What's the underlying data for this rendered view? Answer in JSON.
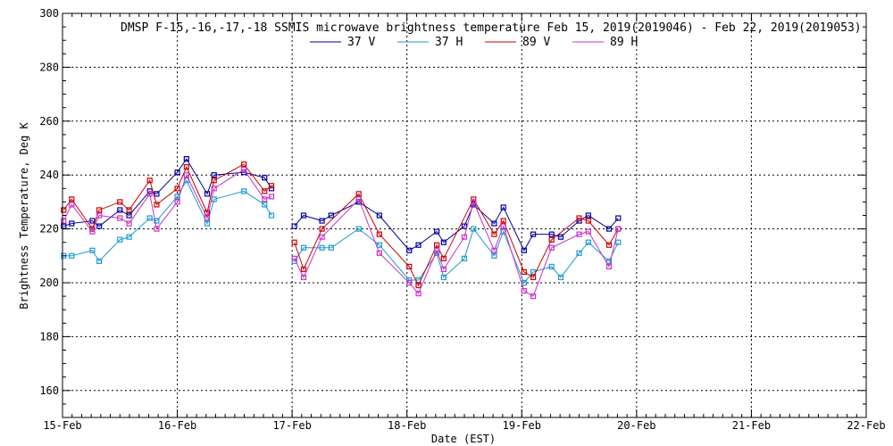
{
  "chart_data": {
    "type": "line",
    "title": "DMSP F-15,-16,-17,-18 SSMIS microwave brightness temperature Feb 15, 2019(2019046) - Feb 22, 2019(2019053)",
    "xlabel": "Date (EST)",
    "ylabel": "Brightness Temperature, Deg K",
    "xlim": [
      0,
      7
    ],
    "ylim": [
      150,
      300
    ],
    "x_ticks": [
      0,
      1,
      2,
      3,
      4,
      5,
      6,
      7
    ],
    "x_tick_labels": [
      "15-Feb",
      "16-Feb",
      "17-Feb",
      "18-Feb",
      "19-Feb",
      "20-Feb",
      "21-Feb",
      "22-Feb"
    ],
    "y_ticks": [
      160,
      180,
      200,
      220,
      240,
      260,
      280,
      300
    ],
    "grid": true,
    "legend_position": "top-center",
    "series": [
      {
        "name": "37 V",
        "color": "#00009c",
        "segments": [
          {
            "x": [
              0.01,
              0.08,
              0.26,
              0.32,
              0.5,
              0.58,
              0.76,
              0.82,
              1.0,
              1.08,
              1.26,
              1.32,
              1.58,
              1.76,
              1.82
            ],
            "y": [
              221,
              222,
              223,
              221,
              227,
              225,
              234,
              233,
              241,
              246,
              233,
              240,
              241,
              239,
              235
            ]
          },
          {
            "x": [
              2.02,
              2.1,
              2.26,
              2.34,
              2.58,
              2.76,
              3.02,
              3.1,
              3.26,
              3.32,
              3.5,
              3.58,
              3.76,
              3.84,
              4.02,
              4.1,
              4.26,
              4.34,
              4.5,
              4.58,
              4.76,
              4.84
            ],
            "y": [
              221,
              225,
              223,
              225,
              230,
              225,
              212,
              214,
              219,
              215,
              221,
              229,
              222,
              228,
              212,
              218,
              218,
              217,
              223,
              225,
              220,
              224
            ]
          }
        ]
      },
      {
        "name": "37 H",
        "color": "#1e9ad2",
        "segments": [
          {
            "x": [
              0.01,
              0.08,
              0.26,
              0.32,
              0.5,
              0.58,
              0.76,
              0.82,
              1.0,
              1.08,
              1.26,
              1.32,
              1.58,
              1.76,
              1.82
            ],
            "y": [
              210,
              210,
              212,
              208,
              216,
              217,
              224,
              223,
              232,
              238,
              222,
              231,
              234,
              229,
              225
            ]
          },
          {
            "x": [
              2.02,
              2.1,
              2.26,
              2.34,
              2.58,
              2.76,
              3.02,
              3.1,
              3.26,
              3.32,
              3.5,
              3.58,
              3.76,
              3.84,
              4.02,
              4.1,
              4.26,
              4.34,
              4.5,
              4.58,
              4.76,
              4.84
            ],
            "y": [
              208,
              213,
              213,
              213,
              220,
              214,
              201,
              201,
              211,
              202,
              209,
              220,
              210,
              219,
              200,
              204,
              206,
              202,
              211,
              215,
              208,
              215
            ]
          }
        ]
      },
      {
        "name": "89 V",
        "color": "#c80000",
        "segments": [
          {
            "x": [
              0.01,
              0.08,
              0.26,
              0.32,
              0.5,
              0.58,
              0.76,
              0.82,
              1.0,
              1.08,
              1.26,
              1.32,
              1.58,
              1.76,
              1.82
            ],
            "y": [
              227,
              231,
              220,
              227,
              230,
              227,
              238,
              229,
              235,
              243,
              226,
              238,
              244,
              234,
              236
            ]
          },
          {
            "x": [
              2.02,
              2.1,
              2.26,
              2.58,
              2.76,
              3.02,
              3.1,
              3.26,
              3.32,
              3.58,
              3.76,
              3.84,
              4.02,
              4.1,
              4.26,
              4.5,
              4.58,
              4.76,
              4.84
            ],
            "y": [
              215,
              205,
              220,
              233,
              218,
              206,
              199,
              214,
              209,
              231,
              218,
              223,
              204,
              202,
              216,
              224,
              223,
              214,
              220
            ]
          }
        ]
      },
      {
        "name": "89 H",
        "color": "#c832c8",
        "segments": [
          {
            "x": [
              0.01,
              0.08,
              0.26,
              0.32,
              0.5,
              0.58,
              0.76,
              0.82,
              1.0,
              1.08,
              1.26,
              1.32,
              1.58,
              1.76,
              1.82
            ],
            "y": [
              223,
              229,
              219,
              225,
              224,
              222,
              233,
              220,
              230,
              240,
              224,
              235,
              242,
              231,
              232
            ]
          },
          {
            "x": [
              2.02,
              2.1,
              2.26,
              2.58,
              2.76,
              3.02,
              3.1,
              3.26,
              3.32,
              3.5,
              3.58,
              3.76,
              3.84,
              4.02,
              4.1,
              4.26,
              4.5,
              4.58,
              4.76,
              4.84
            ],
            "y": [
              209,
              202,
              217,
              231,
              211,
              200,
              196,
              212,
              205,
              217,
              230,
              212,
              221,
              197,
              195,
              213,
              218,
              219,
              206,
              220
            ]
          }
        ]
      }
    ]
  }
}
